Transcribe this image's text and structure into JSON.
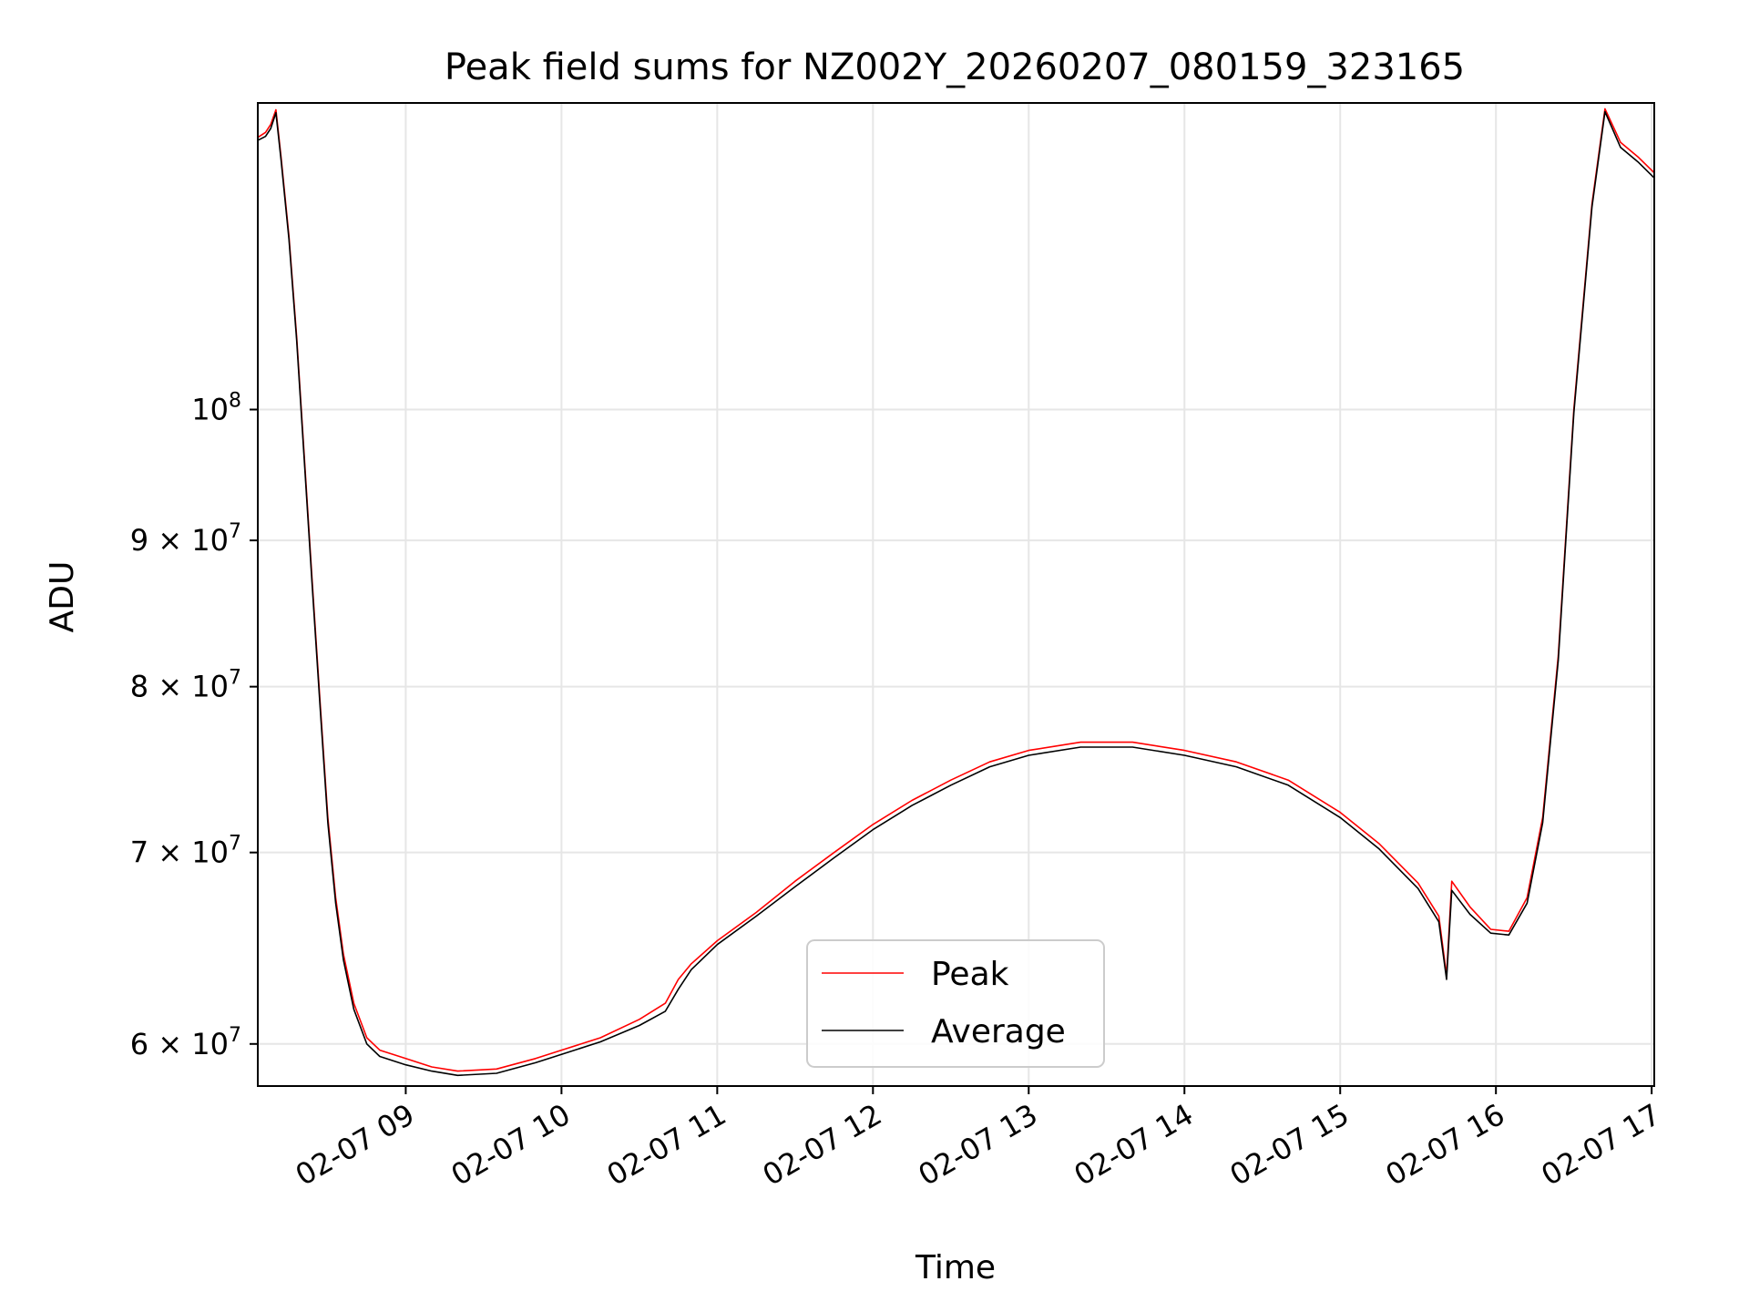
{
  "chart_data": {
    "type": "line",
    "title": "Peak field sums for NZ002Y_20260207_080159_323165",
    "xlabel": "Time",
    "ylabel": "ADU",
    "yscale": "log",
    "grid": true,
    "legend_position": "lower center",
    "xlim": [
      "2026-02-07 08:03",
      "2026-02-07 17:01"
    ],
    "ylim": [
      58000000,
      128000000
    ],
    "x_ticks": [
      "2026-02-07 09:00",
      "2026-02-07 10:00",
      "2026-02-07 11:00",
      "2026-02-07 12:00",
      "2026-02-07 13:00",
      "2026-02-07 14:00",
      "2026-02-07 15:00",
      "2026-02-07 16:00",
      "2026-02-07 17:00"
    ],
    "x_tick_labels": [
      "02-07 09",
      "02-07 10",
      "02-07 11",
      "02-07 12",
      "02-07 13",
      "02-07 14",
      "02-07 15",
      "02-07 16",
      "02-07 17"
    ],
    "y_ticks": [
      {
        "value": 60000000,
        "mantissa": "6",
        "exponent": "7"
      },
      {
        "value": 70000000,
        "mantissa": "7",
        "exponent": "7"
      },
      {
        "value": 80000000,
        "mantissa": "8",
        "exponent": "7"
      },
      {
        "value": 90000000,
        "mantissa": "9",
        "exponent": "7"
      },
      {
        "value": 100000000,
        "mantissa": "",
        "exponent": "8"
      }
    ],
    "series": [
      {
        "name": "Peak",
        "color": "#ff0000",
        "points": [
          [
            "2026-02-07 08:03",
            124500000
          ],
          [
            "2026-02-07 08:06",
            125000000
          ],
          [
            "2026-02-07 08:08",
            125800000
          ],
          [
            "2026-02-07 08:10",
            127300000
          ],
          [
            "2026-02-07 08:12",
            122500000
          ],
          [
            "2026-02-07 08:15",
            115000000
          ],
          [
            "2026-02-07 08:18",
            106000000
          ],
          [
            "2026-02-07 08:21",
            96000000
          ],
          [
            "2026-02-07 08:24",
            87000000
          ],
          [
            "2026-02-07 08:27",
            79000000
          ],
          [
            "2026-02-07 08:30",
            72000000
          ],
          [
            "2026-02-07 08:33",
            67500000
          ],
          [
            "2026-02-07 08:36",
            64500000
          ],
          [
            "2026-02-07 08:40",
            62000000
          ],
          [
            "2026-02-07 08:45",
            60300000
          ],
          [
            "2026-02-07 08:50",
            59700000
          ],
          [
            "2026-02-07 09:00",
            59300000
          ],
          [
            "2026-02-07 09:10",
            58900000
          ],
          [
            "2026-02-07 09:20",
            58700000
          ],
          [
            "2026-02-07 09:35",
            58800000
          ],
          [
            "2026-02-07 09:50",
            59300000
          ],
          [
            "2026-02-07 10:00",
            59700000
          ],
          [
            "2026-02-07 10:15",
            60300000
          ],
          [
            "2026-02-07 10:30",
            61200000
          ],
          [
            "2026-02-07 10:40",
            62000000
          ],
          [
            "2026-02-07 10:45",
            63200000
          ],
          [
            "2026-02-07 10:50",
            64000000
          ],
          [
            "2026-02-07 11:00",
            65200000
          ],
          [
            "2026-02-07 11:15",
            66700000
          ],
          [
            "2026-02-07 11:30",
            68400000
          ],
          [
            "2026-02-07 11:45",
            70000000
          ],
          [
            "2026-02-07 12:00",
            71600000
          ],
          [
            "2026-02-07 12:15",
            73000000
          ],
          [
            "2026-02-07 12:30",
            74200000
          ],
          [
            "2026-02-07 12:45",
            75300000
          ],
          [
            "2026-02-07 13:00",
            76000000
          ],
          [
            "2026-02-07 13:20",
            76500000
          ],
          [
            "2026-02-07 13:40",
            76500000
          ],
          [
            "2026-02-07 14:00",
            76000000
          ],
          [
            "2026-02-07 14:20",
            75300000
          ],
          [
            "2026-02-07 14:40",
            74200000
          ],
          [
            "2026-02-07 15:00",
            72300000
          ],
          [
            "2026-02-07 15:15",
            70500000
          ],
          [
            "2026-02-07 15:30",
            68300000
          ],
          [
            "2026-02-07 15:38",
            66500000
          ],
          [
            "2026-02-07 15:41",
            63400000
          ],
          [
            "2026-02-07 15:43",
            68400000
          ],
          [
            "2026-02-07 15:50",
            67000000
          ],
          [
            "2026-02-07 15:58",
            65800000
          ],
          [
            "2026-02-07 16:05",
            65700000
          ],
          [
            "2026-02-07 16:12",
            67500000
          ],
          [
            "2026-02-07 16:18",
            72000000
          ],
          [
            "2026-02-07 16:24",
            82000000
          ],
          [
            "2026-02-07 16:30",
            100000000
          ],
          [
            "2026-02-07 16:37",
            118000000
          ],
          [
            "2026-02-07 16:42",
            127400000
          ],
          [
            "2026-02-07 16:48",
            124000000
          ],
          [
            "2026-02-07 16:55",
            122500000
          ],
          [
            "2026-02-07 17:01",
            121000000
          ]
        ]
      },
      {
        "name": "Average",
        "color": "#000000",
        "points": [
          [
            "2026-02-07 08:03",
            124200000
          ],
          [
            "2026-02-07 08:06",
            124600000
          ],
          [
            "2026-02-07 08:08",
            125400000
          ],
          [
            "2026-02-07 08:10",
            127000000
          ],
          [
            "2026-02-07 08:12",
            122200000
          ],
          [
            "2026-02-07 08:15",
            114700000
          ],
          [
            "2026-02-07 08:18",
            105700000
          ],
          [
            "2026-02-07 08:21",
            95700000
          ],
          [
            "2026-02-07 08:24",
            86700000
          ],
          [
            "2026-02-07 08:27",
            78700000
          ],
          [
            "2026-02-07 08:30",
            71700000
          ],
          [
            "2026-02-07 08:33",
            67200000
          ],
          [
            "2026-02-07 08:36",
            64200000
          ],
          [
            "2026-02-07 08:40",
            61700000
          ],
          [
            "2026-02-07 08:45",
            60000000
          ],
          [
            "2026-02-07 08:50",
            59400000
          ],
          [
            "2026-02-07 09:00",
            59000000
          ],
          [
            "2026-02-07 09:10",
            58700000
          ],
          [
            "2026-02-07 09:20",
            58500000
          ],
          [
            "2026-02-07 09:35",
            58600000
          ],
          [
            "2026-02-07 09:50",
            59100000
          ],
          [
            "2026-02-07 10:00",
            59500000
          ],
          [
            "2026-02-07 10:15",
            60100000
          ],
          [
            "2026-02-07 10:30",
            60900000
          ],
          [
            "2026-02-07 10:40",
            61600000
          ],
          [
            "2026-02-07 10:45",
            62700000
          ],
          [
            "2026-02-07 10:50",
            63700000
          ],
          [
            "2026-02-07 11:00",
            65000000
          ],
          [
            "2026-02-07 11:15",
            66500000
          ],
          [
            "2026-02-07 11:30",
            68100000
          ],
          [
            "2026-02-07 11:45",
            69700000
          ],
          [
            "2026-02-07 12:00",
            71300000
          ],
          [
            "2026-02-07 12:15",
            72700000
          ],
          [
            "2026-02-07 12:30",
            73900000
          ],
          [
            "2026-02-07 12:45",
            75000000
          ],
          [
            "2026-02-07 13:00",
            75700000
          ],
          [
            "2026-02-07 13:20",
            76200000
          ],
          [
            "2026-02-07 13:40",
            76200000
          ],
          [
            "2026-02-07 14:00",
            75700000
          ],
          [
            "2026-02-07 14:20",
            75000000
          ],
          [
            "2026-02-07 14:40",
            73900000
          ],
          [
            "2026-02-07 15:00",
            72000000
          ],
          [
            "2026-02-07 15:15",
            70200000
          ],
          [
            "2026-02-07 15:30",
            68000000
          ],
          [
            "2026-02-07 15:38",
            66200000
          ],
          [
            "2026-02-07 15:41",
            63200000
          ],
          [
            "2026-02-07 15:43",
            67900000
          ],
          [
            "2026-02-07 15:50",
            66600000
          ],
          [
            "2026-02-07 15:58",
            65600000
          ],
          [
            "2026-02-07 16:05",
            65500000
          ],
          [
            "2026-02-07 16:12",
            67200000
          ],
          [
            "2026-02-07 16:18",
            71700000
          ],
          [
            "2026-02-07 16:24",
            81700000
          ],
          [
            "2026-02-07 16:30",
            99700000
          ],
          [
            "2026-02-07 16:37",
            117700000
          ],
          [
            "2026-02-07 16:42",
            127100000
          ],
          [
            "2026-02-07 16:48",
            123500000
          ],
          [
            "2026-02-07 16:55",
            122000000
          ],
          [
            "2026-02-07 17:01",
            120500000
          ]
        ]
      }
    ]
  }
}
